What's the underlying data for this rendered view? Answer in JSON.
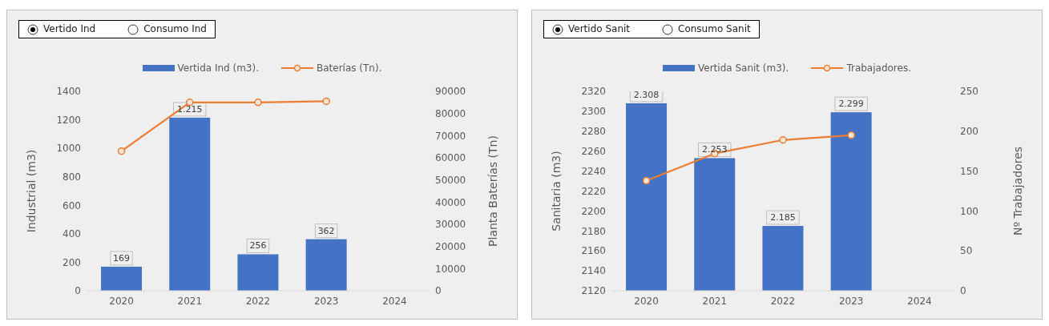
{
  "chart_data": [
    {
      "type": "bar",
      "annotations": [
        "Vertido Ind",
        "Consumo Ind"
      ],
      "ylabel": "Industrial (m3)",
      "y2label": "Planta Baterías (Tn)",
      "categories": [
        "2020",
        "2021",
        "2022",
        "2023",
        "2024"
      ],
      "series": [
        {
          "name": "Vertida Ind (m3).",
          "type": "bar",
          "color": "#4472c4",
          "values": [
            169,
            1215,
            256,
            362,
            null
          ],
          "value_labels": [
            "169",
            "1.215",
            "256",
            "362",
            null
          ]
        },
        {
          "name": "Baterías (Tn).",
          "type": "line",
          "axis": "y2",
          "color": "#ed7d31",
          "values": [
            63000,
            85000,
            85000,
            85500,
            null
          ]
        }
      ],
      "ylim": [
        0,
        1400
      ],
      "yticks": [
        0,
        200,
        400,
        600,
        800,
        1000,
        1200,
        1400
      ],
      "y2lim": [
        0,
        90000
      ],
      "y2ticks": [
        0,
        10000,
        20000,
        30000,
        40000,
        50000,
        60000,
        70000,
        80000,
        90000
      ],
      "legend": "top",
      "marker": "circle"
    },
    {
      "type": "bar",
      "annotations": [
        "Vertido Sanit",
        "Consumo Sanit"
      ],
      "ylabel": "Sanitaria (m3)",
      "y2label": "Nº Trabajadores",
      "categories": [
        "2020",
        "2021",
        "2022",
        "2023",
        "2024"
      ],
      "series": [
        {
          "name": "Vertida Sanit (m3).",
          "type": "bar",
          "color": "#4472c4",
          "values": [
            2308,
            2253,
            2185,
            2299,
            null
          ],
          "value_labels": [
            "2.308",
            "2.253",
            "2.185",
            "2.299",
            null
          ]
        },
        {
          "name": "Trabajadores.",
          "type": "line",
          "axis": "y2",
          "color": "#ed7d31",
          "values": [
            138,
            172,
            189,
            195,
            null
          ]
        }
      ],
      "ylim": [
        2120,
        2320
      ],
      "yticks": [
        2120,
        2140,
        2160,
        2180,
        2200,
        2220,
        2240,
        2260,
        2280,
        2300,
        2320
      ],
      "y2lim": [
        0,
        250
      ],
      "y2ticks": [
        0,
        50,
        100,
        150,
        200,
        250
      ],
      "legend": "top",
      "marker": "circle"
    }
  ]
}
